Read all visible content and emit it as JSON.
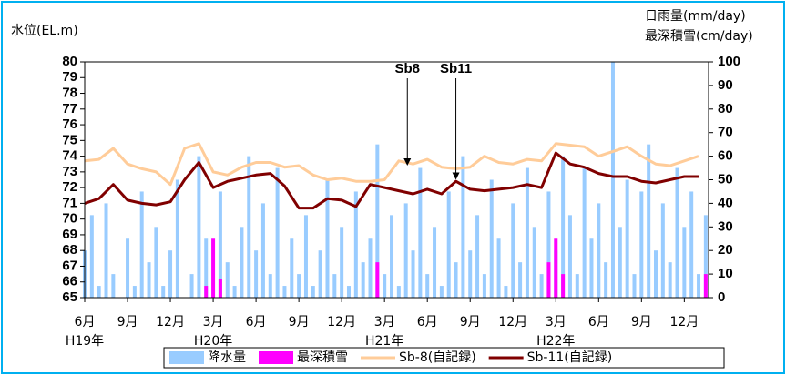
{
  "chart_data": {
    "type": "combo",
    "y_label": "水位(EL.m)",
    "y2_label_1": "日雨量(mm/day)",
    "y2_label_2": "最深積雪(cm/day)",
    "xlim": [
      0,
      43.7
    ],
    "xticks": [
      {
        "value": 0,
        "label": "6月"
      },
      {
        "value": 3,
        "label": "9月"
      },
      {
        "value": 6,
        "label": "12月"
      },
      {
        "value": 9,
        "label": "3月"
      },
      {
        "value": 12,
        "label": "6月"
      },
      {
        "value": 15,
        "label": "9月"
      },
      {
        "value": 18,
        "label": "12月"
      },
      {
        "value": 21,
        "label": "3月"
      },
      {
        "value": 24,
        "label": "6月"
      },
      {
        "value": 27,
        "label": "9月"
      },
      {
        "value": 30,
        "label": "12月"
      },
      {
        "value": 33,
        "label": "3月"
      },
      {
        "value": 36,
        "label": "6月"
      },
      {
        "value": 39,
        "label": "9月"
      },
      {
        "value": 42,
        "label": "12月"
      }
    ],
    "year_labels": [
      {
        "value": 0,
        "label": "H19年"
      },
      {
        "value": 9,
        "label": "H20年"
      },
      {
        "value": 21,
        "label": "H21年"
      },
      {
        "value": 33,
        "label": "H22年"
      }
    ],
    "ylim": [
      65,
      80
    ],
    "yticks": [
      65,
      66,
      67,
      68,
      69,
      70,
      71,
      72,
      73,
      74,
      75,
      76,
      77,
      78,
      79,
      80
    ],
    "y2lim": [
      0,
      100
    ],
    "y2ticks": [
      0,
      10,
      20,
      30,
      40,
      50,
      60,
      70,
      80,
      90,
      100
    ],
    "series": [
      {
        "name": "降水量",
        "kind": "bar",
        "axis": "y2",
        "color": "#99ccff",
        "x": [
          0,
          0.5,
          1,
          1.5,
          2,
          2.5,
          3,
          3.5,
          4,
          4.5,
          5,
          5.5,
          6,
          6.5,
          7,
          7.5,
          8,
          8.5,
          9,
          9.5,
          10,
          10.5,
          11,
          11.5,
          12,
          12.5,
          13,
          13.5,
          14,
          14.5,
          15,
          15.5,
          16,
          16.5,
          17,
          17.5,
          18,
          18.5,
          19,
          19.5,
          20,
          20.5,
          21,
          21.5,
          22,
          22.5,
          23,
          23.5,
          24,
          24.5,
          25,
          25.5,
          26,
          26.5,
          27,
          27.5,
          28,
          28.5,
          29,
          29.5,
          30,
          30.5,
          31,
          31.5,
          32,
          32.5,
          33,
          33.5,
          34,
          34.5,
          35,
          35.5,
          36,
          36.5,
          37,
          37.5,
          38,
          38.5,
          39,
          39.5,
          40,
          40.5,
          41,
          41.5,
          42,
          42.5,
          43,
          43.5
        ],
        "values": [
          20,
          35,
          5,
          40,
          10,
          0,
          25,
          5,
          45,
          15,
          30,
          5,
          20,
          50,
          0,
          10,
          60,
          25,
          0,
          45,
          15,
          5,
          30,
          60,
          20,
          40,
          10,
          55,
          5,
          25,
          10,
          35,
          5,
          20,
          50,
          10,
          30,
          5,
          45,
          15,
          25,
          65,
          10,
          35,
          5,
          40,
          20,
          55,
          10,
          30,
          5,
          45,
          15,
          60,
          20,
          35,
          10,
          50,
          25,
          5,
          40,
          15,
          55,
          30,
          10,
          45,
          20,
          60,
          35,
          10,
          55,
          25,
          40,
          15,
          100,
          30,
          50,
          10,
          45,
          65,
          20,
          40,
          15,
          55,
          30,
          45,
          10,
          35
        ]
      },
      {
        "name": "最深積雪",
        "kind": "bar",
        "axis": "y2",
        "color": "#ff00ff",
        "x": [
          8.5,
          9,
          9.5,
          20.5,
          32.5,
          33,
          33.5,
          43.5
        ],
        "values": [
          5,
          25,
          8,
          15,
          15,
          25,
          10,
          10
        ]
      },
      {
        "name": "Sb-8(自記録)",
        "kind": "line",
        "color": "#ffcc99",
        "x": [
          0,
          1,
          2,
          3,
          4,
          5,
          6,
          7,
          8,
          9,
          10,
          11,
          12,
          13,
          14,
          15,
          16,
          17,
          18,
          19,
          20,
          21,
          22,
          23,
          24,
          25,
          26,
          27,
          28,
          29,
          30,
          31,
          32,
          33,
          34,
          35,
          36,
          37,
          38,
          39,
          40,
          41,
          42,
          43
        ],
        "values": [
          73.7,
          73.8,
          74.5,
          73.5,
          73.2,
          73.0,
          72.2,
          74.5,
          74.8,
          73.0,
          72.8,
          73.3,
          73.6,
          73.6,
          73.3,
          73.4,
          72.8,
          72.5,
          72.6,
          72.4,
          72.4,
          72.5,
          73.7,
          73.5,
          73.8,
          73.3,
          73.2,
          73.3,
          74.0,
          73.6,
          73.5,
          73.8,
          73.7,
          74.8,
          74.7,
          74.6,
          74.0,
          74.3,
          74.6,
          74.0,
          73.5,
          73.4,
          73.7,
          74.0
        ]
      },
      {
        "name": "Sb-11(自記録)",
        "kind": "line",
        "color": "#800000",
        "x": [
          0,
          1,
          2,
          3,
          4,
          5,
          6,
          7,
          8,
          9,
          10,
          11,
          12,
          13,
          14,
          15,
          16,
          17,
          18,
          19,
          20,
          21,
          22,
          23,
          24,
          25,
          26,
          27,
          28,
          29,
          30,
          31,
          32,
          33,
          34,
          35,
          36,
          37,
          38,
          39,
          40,
          41,
          42,
          43
        ],
        "values": [
          71.0,
          71.3,
          72.2,
          71.2,
          71.0,
          70.9,
          71.1,
          72.5,
          73.6,
          72.0,
          72.4,
          72.6,
          72.8,
          72.9,
          72.1,
          70.7,
          70.7,
          71.3,
          71.2,
          70.8,
          72.2,
          72.0,
          71.8,
          71.6,
          71.9,
          71.6,
          72.4,
          71.9,
          71.8,
          71.9,
          72.0,
          72.2,
          72.0,
          74.2,
          73.5,
          73.3,
          72.9,
          72.7,
          72.7,
          72.4,
          72.3,
          72.5,
          72.7,
          72.7
        ]
      }
    ],
    "annotations": [
      {
        "text": "Sb8",
        "x": 22.6,
        "y": 73.4
      },
      {
        "text": "Sb11",
        "x": 26,
        "y": 72.5
      }
    ]
  }
}
